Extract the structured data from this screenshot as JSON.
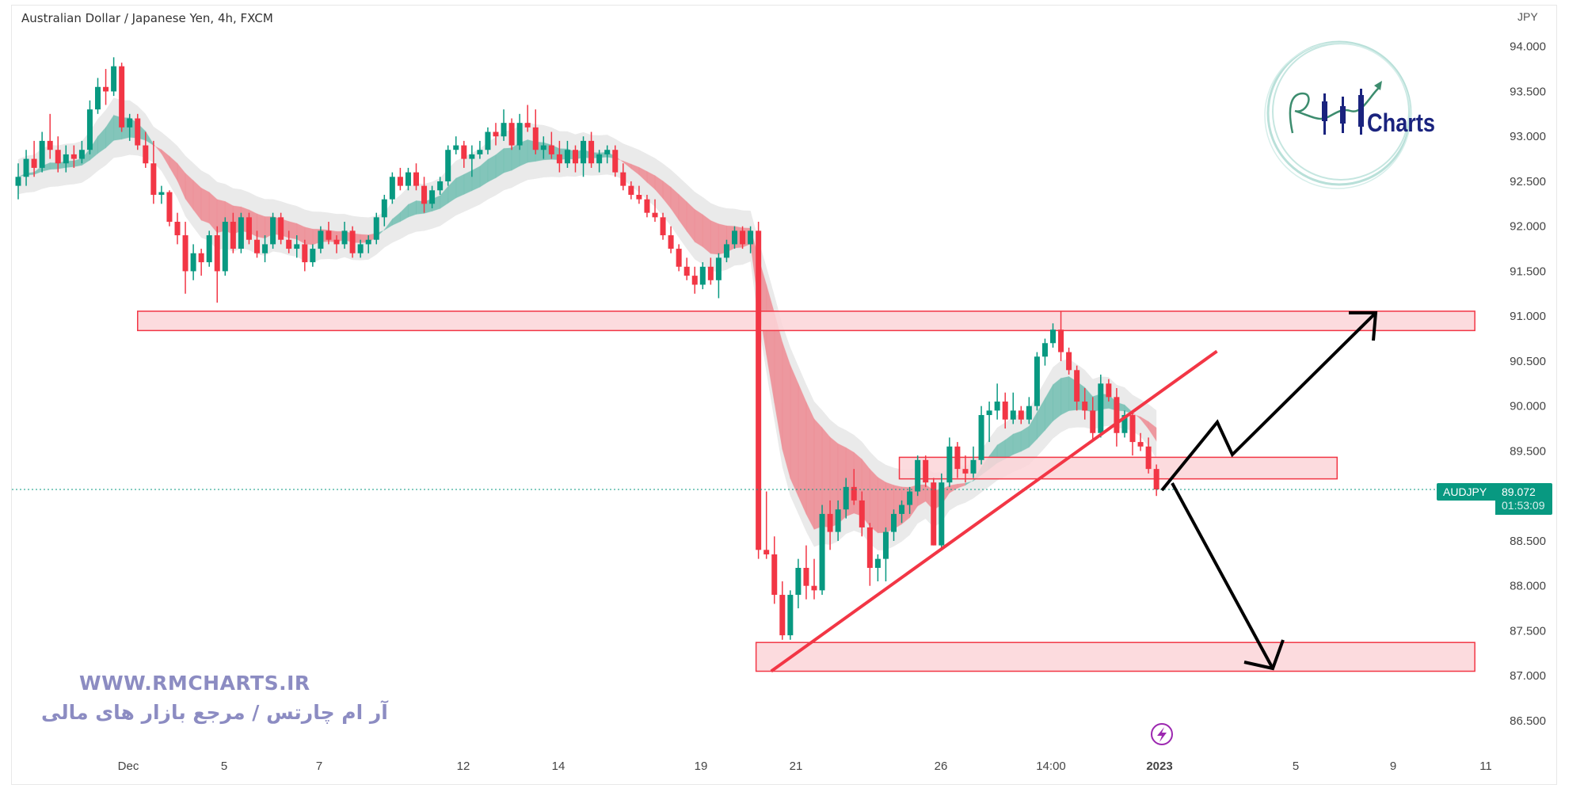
{
  "header": {
    "title": "Australian Dollar / Japanese Yen, 4h, FXCM"
  },
  "price_axis": {
    "currency": "JPY",
    "ticks": [
      "94.000",
      "93.500",
      "93.000",
      "92.500",
      "92.000",
      "91.500",
      "91.000",
      "90.500",
      "90.000",
      "89.500",
      "88.500",
      "88.000",
      "87.500",
      "87.000",
      "86.500"
    ]
  },
  "time_axis": {
    "ticks": [
      "Dec",
      "5",
      "7",
      "12",
      "14",
      "19",
      "21",
      "26",
      "14:00",
      "2023",
      "5",
      "9",
      "11"
    ]
  },
  "last_price": {
    "symbol": "AUDJPY",
    "price": "89.072",
    "countdown": "01:53:09"
  },
  "watermark": {
    "url": "WWW.RMCHARTS.IR",
    "tagline": "آر ام چارتس / مرجع بازار های مالی",
    "logo_text": "RM Charts"
  },
  "colors": {
    "up": "#089981",
    "down": "#f23645",
    "zone_fill": "#fbd5d8",
    "zone_stroke": "#f23645",
    "trendline": "#f23645",
    "arrows": "#000000",
    "ribbon_envelope": "#e3e3e3"
  },
  "icons": {
    "event": "lightning-icon"
  },
  "chart_data": {
    "type": "candlestick",
    "title": "Australian Dollar / Japanese Yen, 4h, FXCM",
    "ylabel": "JPY",
    "ylim": [
      86.3,
      94.3
    ],
    "grid": false,
    "last_price": 89.072,
    "candles_ohlc": [
      [
        92.45,
        92.7,
        92.3,
        92.55
      ],
      [
        92.55,
        92.85,
        92.45,
        92.75
      ],
      [
        92.75,
        92.95,
        92.55,
        92.65
      ],
      [
        92.65,
        93.05,
        92.6,
        92.95
      ],
      [
        92.95,
        93.25,
        92.75,
        92.85
      ],
      [
        92.85,
        93.0,
        92.6,
        92.7
      ],
      [
        92.7,
        92.9,
        92.6,
        92.8
      ],
      [
        92.8,
        92.9,
        92.65,
        92.75
      ],
      [
        92.75,
        92.95,
        92.7,
        92.85
      ],
      [
        92.85,
        93.4,
        92.8,
        93.3
      ],
      [
        93.3,
        93.65,
        93.25,
        93.55
      ],
      [
        93.55,
        93.75,
        93.35,
        93.5
      ],
      [
        93.5,
        93.88,
        93.45,
        93.78
      ],
      [
        93.78,
        93.82,
        93.05,
        93.1
      ],
      [
        93.1,
        93.25,
        92.95,
        93.2
      ],
      [
        93.2,
        93.25,
        92.85,
        92.9
      ],
      [
        92.9,
        93.05,
        92.65,
        92.7
      ],
      [
        92.7,
        92.95,
        92.25,
        92.35
      ],
      [
        92.35,
        92.45,
        92.25,
        92.38
      ],
      [
        92.38,
        92.4,
        92.0,
        92.05
      ],
      [
        92.05,
        92.15,
        91.8,
        91.9
      ],
      [
        91.9,
        92.05,
        91.25,
        91.5
      ],
      [
        91.5,
        91.8,
        91.4,
        91.7
      ],
      [
        91.7,
        91.75,
        91.45,
        91.6
      ],
      [
        91.6,
        91.95,
        91.55,
        91.9
      ],
      [
        91.9,
        92.0,
        91.15,
        91.5
      ],
      [
        91.5,
        92.1,
        91.45,
        92.05
      ],
      [
        92.05,
        92.15,
        91.7,
        91.75
      ],
      [
        91.75,
        92.15,
        91.7,
        92.1
      ],
      [
        92.1,
        92.15,
        91.8,
        91.85
      ],
      [
        91.85,
        91.95,
        91.65,
        91.7
      ],
      [
        91.7,
        91.9,
        91.6,
        91.8
      ],
      [
        91.8,
        92.15,
        91.75,
        92.1
      ],
      [
        92.1,
        92.15,
        91.8,
        91.85
      ],
      [
        91.85,
        91.95,
        91.7,
        91.75
      ],
      [
        91.75,
        91.9,
        91.65,
        91.8
      ],
      [
        91.8,
        91.85,
        91.5,
        91.6
      ],
      [
        91.6,
        91.8,
        91.55,
        91.75
      ],
      [
        91.75,
        92.0,
        91.7,
        91.95
      ],
      [
        91.95,
        92.05,
        91.8,
        91.85
      ],
      [
        91.85,
        91.9,
        91.7,
        91.8
      ],
      [
        91.8,
        92.05,
        91.75,
        91.95
      ],
      [
        91.95,
        92.0,
        91.65,
        91.7
      ],
      [
        91.7,
        91.85,
        91.65,
        91.8
      ],
      [
        91.8,
        91.9,
        91.7,
        91.85
      ],
      [
        91.85,
        92.15,
        91.8,
        92.1
      ],
      [
        92.1,
        92.35,
        92.0,
        92.3
      ],
      [
        92.3,
        92.6,
        92.25,
        92.55
      ],
      [
        92.55,
        92.65,
        92.4,
        92.45
      ],
      [
        92.45,
        92.65,
        92.4,
        92.6
      ],
      [
        92.6,
        92.7,
        92.4,
        92.45
      ],
      [
        92.45,
        92.55,
        92.15,
        92.25
      ],
      [
        92.25,
        92.45,
        92.2,
        92.4
      ],
      [
        92.4,
        92.55,
        92.35,
        92.5
      ],
      [
        92.5,
        92.9,
        92.45,
        92.85
      ],
      [
        92.85,
        93.0,
        92.8,
        92.9
      ],
      [
        92.9,
        92.95,
        92.65,
        92.75
      ],
      [
        92.75,
        92.9,
        92.55,
        92.8
      ],
      [
        92.8,
        92.95,
        92.75,
        92.85
      ],
      [
        92.85,
        93.1,
        92.8,
        93.05
      ],
      [
        93.05,
        93.15,
        92.9,
        93.0
      ],
      [
        93.0,
        93.3,
        92.95,
        93.15
      ],
      [
        93.15,
        93.2,
        92.85,
        92.9
      ],
      [
        92.9,
        93.25,
        92.85,
        93.15
      ],
      [
        93.15,
        93.35,
        93.05,
        93.1
      ],
      [
        93.1,
        93.3,
        92.8,
        92.85
      ],
      [
        92.85,
        93.0,
        92.75,
        92.9
      ],
      [
        92.9,
        93.05,
        92.75,
        92.8
      ],
      [
        92.8,
        92.95,
        92.6,
        92.7
      ],
      [
        92.7,
        92.95,
        92.65,
        92.85
      ],
      [
        92.85,
        92.9,
        92.6,
        92.7
      ],
      [
        92.7,
        93.0,
        92.55,
        92.95
      ],
      [
        92.95,
        93.05,
        92.65,
        92.7
      ],
      [
        92.7,
        92.85,
        92.6,
        92.8
      ],
      [
        92.8,
        92.9,
        92.7,
        92.85
      ],
      [
        92.85,
        92.9,
        92.55,
        92.6
      ],
      [
        92.6,
        92.7,
        92.4,
        92.45
      ],
      [
        92.45,
        92.5,
        92.3,
        92.35
      ],
      [
        92.35,
        92.45,
        92.25,
        92.3
      ],
      [
        92.3,
        92.35,
        92.1,
        92.15
      ],
      [
        92.15,
        92.3,
        92.05,
        92.1
      ],
      [
        92.1,
        92.15,
        91.85,
        91.9
      ],
      [
        91.9,
        92.0,
        91.7,
        91.75
      ],
      [
        91.75,
        91.8,
        91.5,
        91.55
      ],
      [
        91.55,
        91.65,
        91.4,
        91.45
      ],
      [
        91.45,
        91.55,
        91.25,
        91.35
      ],
      [
        91.35,
        91.6,
        91.3,
        91.55
      ],
      [
        91.55,
        91.65,
        91.35,
        91.4
      ],
      [
        91.4,
        91.7,
        91.2,
        91.65
      ],
      [
        91.65,
        91.85,
        91.6,
        91.8
      ],
      [
        91.8,
        92.0,
        91.75,
        91.95
      ],
      [
        91.95,
        92.0,
        91.75,
        91.8
      ],
      [
        91.8,
        92.0,
        91.7,
        91.95
      ],
      [
        91.95,
        92.05,
        88.3,
        88.4
      ],
      [
        88.4,
        89.05,
        88.3,
        88.35
      ],
      [
        88.35,
        88.55,
        87.8,
        87.9
      ],
      [
        87.9,
        88.05,
        87.4,
        87.45
      ],
      [
        87.45,
        87.95,
        87.4,
        87.9
      ],
      [
        87.9,
        88.3,
        87.75,
        88.2
      ],
      [
        88.2,
        88.45,
        87.85,
        88.0
      ],
      [
        88.0,
        88.3,
        87.85,
        87.95
      ],
      [
        87.95,
        88.9,
        87.9,
        88.8
      ],
      [
        88.8,
        88.95,
        88.4,
        88.6
      ],
      [
        88.6,
        88.95,
        88.5,
        88.85
      ],
      [
        88.85,
        89.2,
        88.75,
        89.1
      ],
      [
        89.1,
        89.3,
        88.9,
        88.95
      ],
      [
        88.95,
        89.05,
        88.55,
        88.65
      ],
      [
        88.65,
        88.7,
        88.0,
        88.2
      ],
      [
        88.2,
        88.35,
        88.05,
        88.3
      ],
      [
        88.3,
        88.65,
        88.05,
        88.6
      ],
      [
        88.6,
        88.85,
        88.5,
        88.8
      ],
      [
        88.8,
        88.95,
        88.7,
        88.9
      ],
      [
        88.9,
        89.1,
        88.8,
        89.05
      ],
      [
        89.05,
        89.45,
        89.0,
        89.4
      ],
      [
        89.4,
        89.45,
        89.1,
        89.15
      ],
      [
        89.15,
        89.2,
        88.45,
        88.45
      ],
      [
        88.45,
        89.25,
        88.4,
        89.15
      ],
      [
        89.15,
        89.65,
        89.1,
        89.55
      ],
      [
        89.55,
        89.6,
        89.2,
        89.3
      ],
      [
        89.3,
        89.45,
        89.15,
        89.25
      ],
      [
        89.25,
        89.55,
        89.2,
        89.4
      ],
      [
        89.4,
        90.0,
        89.35,
        89.9
      ],
      [
        89.9,
        90.05,
        89.6,
        89.95
      ],
      [
        89.95,
        90.25,
        89.85,
        90.05
      ],
      [
        90.05,
        90.15,
        89.75,
        89.85
      ],
      [
        89.85,
        90.15,
        89.8,
        89.95
      ],
      [
        89.95,
        90.0,
        89.8,
        89.85
      ],
      [
        89.85,
        90.1,
        89.8,
        90.0
      ],
      [
        90.0,
        90.6,
        89.95,
        90.55
      ],
      [
        90.55,
        90.75,
        90.45,
        90.7
      ],
      [
        90.7,
        90.92,
        90.65,
        90.85
      ],
      [
        90.85,
        91.05,
        90.5,
        90.6
      ],
      [
        90.6,
        90.65,
        90.35,
        90.4
      ],
      [
        90.4,
        90.45,
        89.95,
        90.05
      ],
      [
        90.05,
        90.2,
        89.85,
        89.95
      ],
      [
        89.95,
        90.1,
        89.6,
        89.7
      ],
      [
        89.7,
        90.35,
        89.65,
        90.25
      ],
      [
        90.25,
        90.3,
        90.05,
        90.1
      ],
      [
        90.1,
        90.2,
        89.55,
        89.7
      ],
      [
        89.7,
        89.95,
        89.65,
        89.9
      ],
      [
        89.9,
        89.95,
        89.45,
        89.6
      ],
      [
        89.6,
        89.7,
        89.5,
        89.55
      ],
      [
        89.55,
        89.65,
        89.25,
        89.3
      ],
      [
        89.3,
        89.35,
        89.0,
        89.072
      ]
    ],
    "zones": [
      {
        "name": "resistance-zone",
        "price_low": 90.84,
        "price_high": 91.055,
        "bar_from": 15,
        "bar_to": 183
      },
      {
        "name": "middle-zone",
        "price_low": 89.19,
        "price_high": 89.43,
        "bar_from": 110.7,
        "bar_to": 165.7
      },
      {
        "name": "support-zone",
        "price_low": 87.05,
        "price_high": 87.37,
        "bar_from": 92.7,
        "bar_to": 183
      }
    ],
    "trendline": {
      "from": {
        "bar": 94.6,
        "price": 87.05
      },
      "to": {
        "bar": 150.6,
        "price": 90.61
      }
    }
  }
}
